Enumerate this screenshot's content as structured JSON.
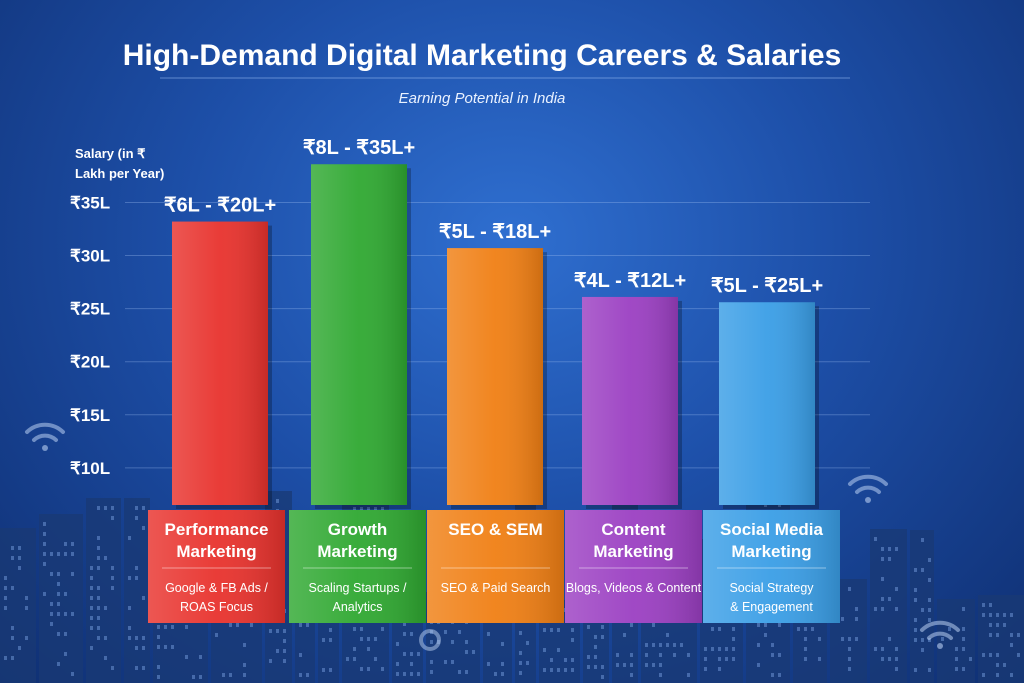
{
  "chart_data": {
    "type": "bar",
    "title": "High-Demand Digital Marketing Careers & Salaries",
    "subtitle": "Earning Potential in India",
    "ylabel_line1": "Salary (in ₹",
    "ylabel_line2": "Lakh per Year)",
    "yticks": [
      "₹35L",
      "₹30L",
      "₹25L",
      "₹20L",
      "₹15L",
      "₹10L"
    ],
    "ytick_values": [
      35,
      30,
      25,
      20,
      15,
      10
    ],
    "ylim": [
      6.5,
      39
    ],
    "grid": true,
    "categories": [
      {
        "name_line1": "Performance",
        "name_line2": "Marketing",
        "desc_line1": "Google & FB Ads /",
        "desc_line2": "ROAS Focus",
        "range_label": "₹6L - ₹20L+",
        "min": 6,
        "max": 20,
        "bar_value": 33.2,
        "color": "#e8322d"
      },
      {
        "name_line1": "Growth",
        "name_line2": "Marketing",
        "desc_line1": "Scaling Startups /",
        "desc_line2": "Analytics",
        "range_label": "₹8L - ₹35L+",
        "min": 8,
        "max": 35,
        "bar_value": 38.6,
        "color": "#2fa831"
      },
      {
        "name_line1": "SEO & SEM",
        "name_line2": "",
        "desc_line1": "SEO & Paid Search",
        "desc_line2": "",
        "range_label": "₹5L - ₹18L+",
        "min": 5,
        "max": 18,
        "bar_value": 30.7,
        "color": "#f07f14"
      },
      {
        "name_line1": "Content",
        "name_line2": "Marketing",
        "desc_line1": "Blogs, Videos & Content",
        "desc_line2": "",
        "range_label": "₹4L - ₹12L+",
        "min": 4,
        "max": 12,
        "bar_value": 26.1,
        "color": "#9b3fc2"
      },
      {
        "name_line1": "Social Media",
        "name_line2": "Marketing",
        "desc_line1": "Social Strategy",
        "desc_line2": "& Engagement",
        "range_label": "₹5L - ₹25L+",
        "min": 5,
        "max": 25,
        "bar_value": 25.6,
        "color": "#3a9ee6"
      }
    ]
  }
}
